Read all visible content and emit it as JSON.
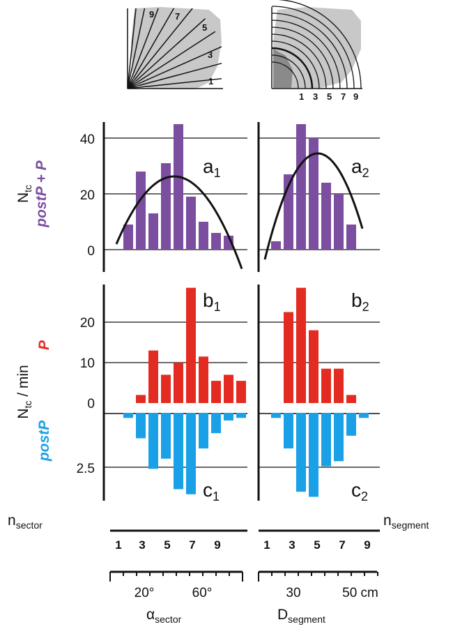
{
  "colors": {
    "purple": "#7B4EA0",
    "red": "#E32B22",
    "blue": "#1AA0E6",
    "shade": "#C8C8C8",
    "line": "#111111"
  },
  "insets": {
    "sector_labels": [
      "9",
      "7",
      "5",
      "3",
      "1"
    ],
    "segment_labels": [
      "1",
      "3",
      "5",
      "7",
      "9"
    ]
  },
  "ylabels": {
    "top_main": "N",
    "top_sub": "tc",
    "top_series": "postP + P",
    "mid_main": "N",
    "mid_sub": "tc",
    "mid_tail": " / min",
    "p_label": "P",
    "postp_label": "postP"
  },
  "panel_labels": {
    "a1_main": "a",
    "a1_sub": "1",
    "a2_main": "a",
    "a2_sub": "2",
    "b1_main": "b",
    "b1_sub": "1",
    "b2_main": "b",
    "b2_sub": "2",
    "c1_main": "c",
    "c1_sub": "1",
    "c2_main": "c",
    "c2_sub": "2"
  },
  "bottom": {
    "nsector_main": "n",
    "nsector_sub": "sector",
    "nsegment_main": "n",
    "nsegment_sub": "segment",
    "n_ticks_left": [
      "1",
      "3",
      "5",
      "7",
      "9"
    ],
    "n_ticks_right": [
      "1",
      "3",
      "5",
      "7",
      "9"
    ],
    "alpha_ticks": [
      "20°",
      "60°"
    ],
    "d_ticks": [
      "30",
      "50 cm"
    ],
    "alpha_main": "α",
    "alpha_sub": "sector",
    "d_main": "D",
    "d_sub": "segment"
  },
  "chart_data": [
    {
      "type": "bar",
      "panel": "a1",
      "x": [
        1,
        2,
        3,
        4,
        5,
        6,
        7,
        8,
        9,
        10
      ],
      "values": [
        9,
        28,
        13,
        31,
        45,
        19,
        10,
        6,
        5,
        0
      ],
      "fit_curve": "parabola",
      "yticks": [
        "0",
        "20",
        "40"
      ],
      "ylim": [
        0,
        47
      ]
    },
    {
      "type": "bar",
      "panel": "a2",
      "x": [
        1,
        2,
        3,
        4,
        5,
        6,
        7,
        8,
        9,
        10
      ],
      "values": [
        3,
        27,
        45,
        40,
        24,
        20,
        9,
        0,
        0,
        0
      ],
      "fit_curve": "parabola",
      "ylim": [
        0,
        47
      ]
    },
    {
      "type": "bar",
      "panel": "b1",
      "x": [
        1,
        2,
        3,
        4,
        5,
        6,
        7,
        8,
        9,
        10
      ],
      "values": [
        0,
        2,
        13,
        7,
        10,
        28.5,
        11.5,
        5.5,
        7,
        5.5
      ],
      "yticks": [
        "0",
        "10",
        "20"
      ],
      "ylim": [
        0,
        28.5
      ]
    },
    {
      "type": "bar",
      "panel": "b2",
      "x": [
        1,
        2,
        3,
        4,
        5,
        6,
        7,
        8,
        9,
        10
      ],
      "values": [
        0,
        22.5,
        28.5,
        18,
        8.5,
        8.5,
        2,
        0,
        0,
        0
      ],
      "ylim": [
        0,
        28.5
      ]
    },
    {
      "type": "bar",
      "panel": "c1",
      "x": [
        1,
        2,
        3,
        4,
        5,
        6,
        7,
        8,
        9,
        10
      ],
      "values": [
        0.2,
        1.0,
        2.2,
        1.8,
        3.0,
        3.2,
        1.4,
        0.8,
        0.3,
        0.2
      ],
      "yticks": [
        "2.5"
      ],
      "ylim": [
        0,
        3.4
      ]
    },
    {
      "type": "bar",
      "panel": "c2",
      "x": [
        1,
        2,
        3,
        4,
        5,
        6,
        7,
        8,
        9,
        10
      ],
      "values": [
        0.2,
        1.4,
        3.1,
        3.3,
        2.1,
        1.9,
        0.9,
        0.2,
        0,
        0
      ],
      "ylim": [
        0,
        3.4
      ]
    }
  ]
}
